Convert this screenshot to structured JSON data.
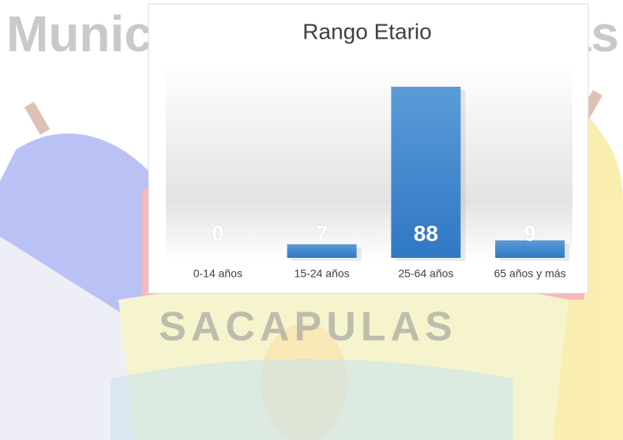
{
  "background": {
    "heading_left": "Munici",
    "heading_right": "as",
    "crest_text": "SACAPULAS"
  },
  "chart_data": {
    "type": "bar",
    "title": "Rango Etario",
    "categories": [
      "0-14 años",
      "15-24 años",
      "25-64 años",
      "65 años y más"
    ],
    "values": [
      0,
      7,
      88,
      9
    ],
    "color": "#3f86d0",
    "data_labels": true
  }
}
